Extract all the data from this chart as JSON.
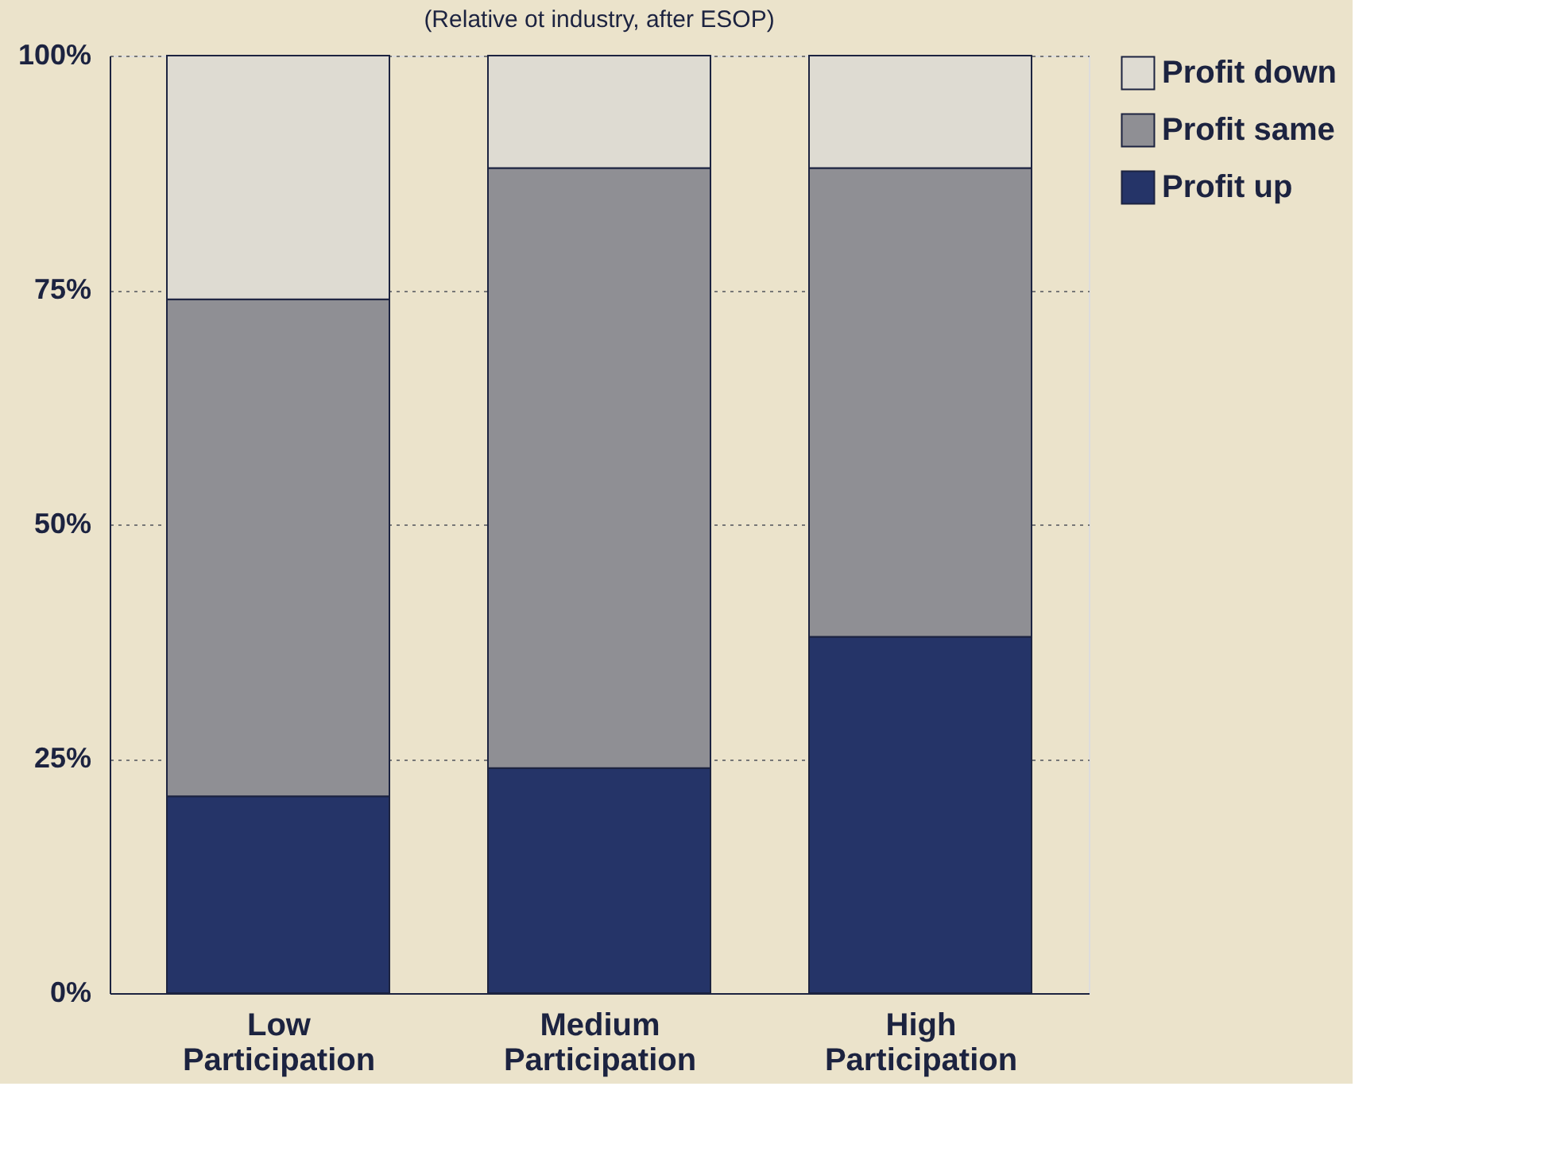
{
  "chart_data": {
    "type": "bar",
    "subtitle": "(Relative ot industry, after ESOP)",
    "stacked": true,
    "categories": [
      "Low Participation",
      "Medium Participation",
      "High Participation"
    ],
    "series": [
      {
        "name": "Profit up",
        "color": "#253468",
        "values": [
          21,
          24,
          38
        ]
      },
      {
        "name": "Profit same",
        "color": "#8f8f94",
        "values": [
          53,
          64,
          50
        ]
      },
      {
        "name": "Profit down",
        "color": "#dedbd2",
        "values": [
          26,
          12,
          12
        ]
      }
    ],
    "ylim": [
      0,
      100
    ],
    "yticks": [
      {
        "value": 0,
        "label": "0%"
      },
      {
        "value": 25,
        "label": "25%"
      },
      {
        "value": 50,
        "label": "50%"
      },
      {
        "value": 75,
        "label": "75%"
      },
      {
        "value": 100,
        "label": "100%"
      }
    ],
    "grid": "y",
    "legend": "right"
  }
}
